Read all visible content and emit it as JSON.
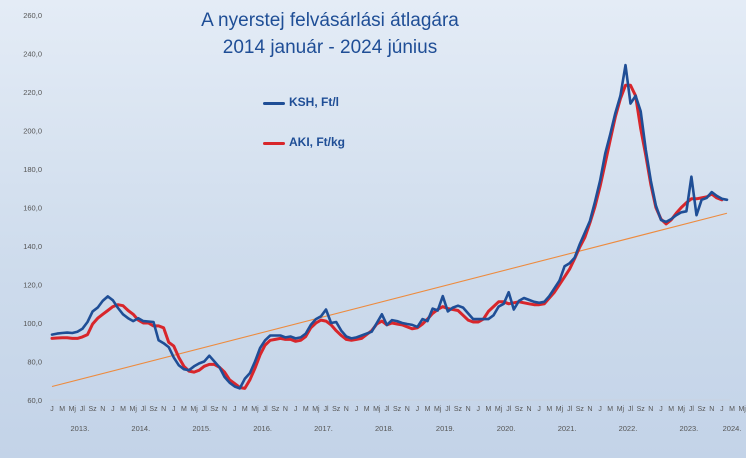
{
  "chart_data": {
    "type": "line",
    "title": "A nyerstej felvásárlási átlagára",
    "subtitle": "2014 január - 2024 június",
    "xlabel": "",
    "ylabel": "",
    "ylim": [
      60,
      260
    ],
    "yticks": [
      "60,0",
      "80,0",
      "100,0",
      "120,0",
      "140,0",
      "160,0",
      "180,0",
      "200,0",
      "220,0",
      "240,0",
      "260,0"
    ],
    "month_labels": [
      "J",
      "M",
      "Mj",
      "Jl",
      "Sz",
      "N"
    ],
    "final_year_month_labels": [
      "J",
      "M",
      "Mj"
    ],
    "years": [
      "2013.",
      "2014.",
      "2015.",
      "2016.",
      "2017.",
      "2018.",
      "2019.",
      "2020.",
      "2021.",
      "2022.",
      "2023.",
      "2024."
    ],
    "grid": false,
    "legend_position": "top-center",
    "series": [
      {
        "name": "KSH, Ft/l",
        "color": "#1f4e96",
        "values": [
          94.0,
          94.5,
          94.8,
          95.0,
          94.8,
          95.5,
          97.0,
          100.5,
          106.0,
          108.0,
          111.5,
          113.8,
          111.8,
          107.8,
          104.5,
          102.5,
          101.0,
          102.5,
          101.0,
          100.8,
          100.5,
          91.0,
          89.5,
          87.5,
          82.0,
          78.0,
          76.0,
          75.5,
          77.5,
          79.0,
          80.0,
          83.0,
          80.0,
          77.0,
          72.0,
          69.0,
          67.0,
          66.0,
          71.0,
          74.0,
          80.0,
          87.0,
          91.0,
          93.5,
          93.5,
          93.5,
          92.5,
          93.0,
          92.0,
          92.5,
          94.5,
          99.0,
          102.0,
          103.5,
          107.0,
          100.0,
          100.5,
          96.0,
          93.0,
          92.0,
          92.5,
          93.5,
          94.5,
          95.5,
          100.0,
          104.5,
          99.0,
          101.5,
          101.0,
          100.0,
          99.5,
          99.0,
          98.0,
          102.0,
          101.0,
          107.5,
          106.5,
          114.0,
          106.0,
          108.0,
          109.0,
          108.0,
          105.0,
          102.0,
          102.0,
          102.0,
          102.0,
          104.0,
          108.5,
          110.0,
          116.0,
          107.0,
          111.5,
          113.0,
          112.0,
          111.0,
          110.5,
          111.0,
          114.0,
          118.0,
          122.0,
          129.5,
          131.0,
          134.0,
          141.0,
          147.0,
          153.0,
          163.0,
          174.0,
          188.0,
          198.0,
          209.0,
          218.0,
          234.0,
          214.0,
          218.0,
          210.0,
          190.0,
          174.0,
          161.0,
          153.5,
          152.5,
          154.0,
          156.0,
          157.5,
          158.0,
          176.0,
          156.0,
          164.0,
          165.0,
          168.0,
          166.0,
          164.5,
          164.0
        ]
      },
      {
        "name": "AKI, Ft/kg",
        "color": "#d8262b",
        "values": [
          92.0,
          92.2,
          92.3,
          92.3,
          92.0,
          92.0,
          92.8,
          94.0,
          99.5,
          102.5,
          104.5,
          106.5,
          108.5,
          109.5,
          109.0,
          106.5,
          104.5,
          101.5,
          100.0,
          100.0,
          98.5,
          98.5,
          97.5,
          90.0,
          88.0,
          82.0,
          77.5,
          75.0,
          74.5,
          75.5,
          77.5,
          78.5,
          78.5,
          77.0,
          74.5,
          70.5,
          68.5,
          66.5,
          66.0,
          70.5,
          76.5,
          83.5,
          88.5,
          91.0,
          91.5,
          92.0,
          91.5,
          91.5,
          90.5,
          91.0,
          93.0,
          97.5,
          100.0,
          101.5,
          101.0,
          99.0,
          96.0,
          93.5,
          91.5,
          91.0,
          91.5,
          92.0,
          94.0,
          96.0,
          99.5,
          101.0,
          99.0,
          100.0,
          99.5,
          99.0,
          98.0,
          97.0,
          97.5,
          99.5,
          102.0,
          105.0,
          107.0,
          108.5,
          107.5,
          107.0,
          106.5,
          104.0,
          101.5,
          100.5,
          100.5,
          102.0,
          106.0,
          108.5,
          111.0,
          111.0,
          110.0,
          110.5,
          111.0,
          110.5,
          110.0,
          109.5,
          109.5,
          110.0,
          113.0,
          116.0,
          120.0,
          124.0,
          128.0,
          133.5,
          139.5,
          144.5,
          152.0,
          160.5,
          171.0,
          183.0,
          195.0,
          207.0,
          216.5,
          223.5,
          223.5,
          218.0,
          201.0,
          187.0,
          172.0,
          160.0,
          154.0,
          151.5,
          153.5,
          157.0,
          160.0,
          162.5,
          164.5,
          164.5,
          165.0,
          165.5,
          167.0,
          165.0,
          164.0
        ]
      },
      {
        "name": "",
        "color": "#ed8b3f",
        "kind": "trendline",
        "values": [
          67.0,
          157.0
        ]
      }
    ]
  }
}
